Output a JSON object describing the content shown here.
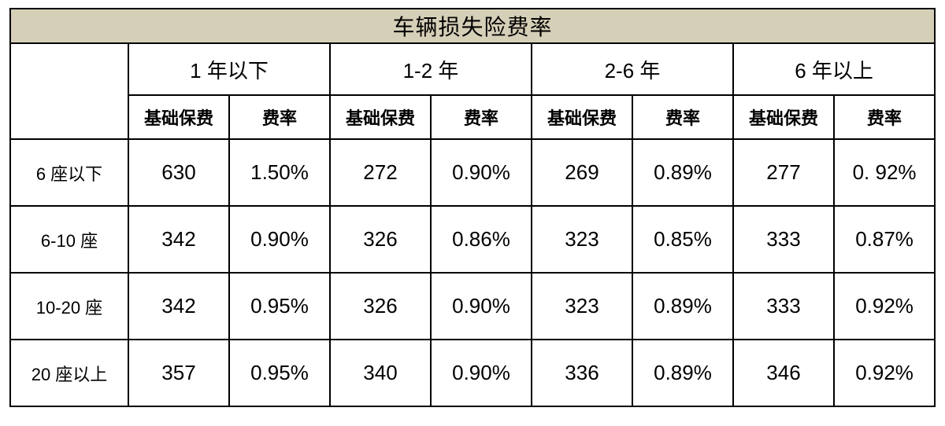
{
  "table": {
    "type": "table",
    "title": "车辆损失险费率",
    "title_bg": "#d6cfb8",
    "border_color": "#000000",
    "text_color": "#000000",
    "background_color": "#ffffff",
    "title_fontsize": 28,
    "period_fontsize": 26,
    "subhead_fontsize": 22,
    "rowlabel_fontsize": 22,
    "value_fontsize": 26,
    "col_widths": {
      "first": 150,
      "pair": 128
    },
    "periods": [
      "1 年以下",
      "1-2 年",
      "2-6 年",
      "6 年以上"
    ],
    "sub_headers": {
      "base": "基础保费",
      "rate": "费率"
    },
    "row_labels": [
      "6 座以下",
      "6-10 座",
      "10-20 座",
      "20 座以上"
    ],
    "rows": [
      {
        "cells": [
          {
            "base": "630",
            "rate": "1.50%"
          },
          {
            "base": "272",
            "rate": "0.90%"
          },
          {
            "base": "269",
            "rate": "0.89%"
          },
          {
            "base": "277",
            "rate": "0. 92%"
          }
        ]
      },
      {
        "cells": [
          {
            "base": "342",
            "rate": "0.90%"
          },
          {
            "base": "326",
            "rate": "0.86%"
          },
          {
            "base": "323",
            "rate": "0.85%"
          },
          {
            "base": "333",
            "rate": "0.87%"
          }
        ]
      },
      {
        "cells": [
          {
            "base": "342",
            "rate": "0.95%"
          },
          {
            "base": "326",
            "rate": "0.90%"
          },
          {
            "base": "323",
            "rate": "0.89%"
          },
          {
            "base": "333",
            "rate": "0.92%"
          }
        ]
      },
      {
        "cells": [
          {
            "base": "357",
            "rate": "0.95%"
          },
          {
            "base": "340",
            "rate": "0.90%"
          },
          {
            "base": "336",
            "rate": "0.89%"
          },
          {
            "base": "346",
            "rate": "0.92%"
          }
        ]
      }
    ]
  }
}
